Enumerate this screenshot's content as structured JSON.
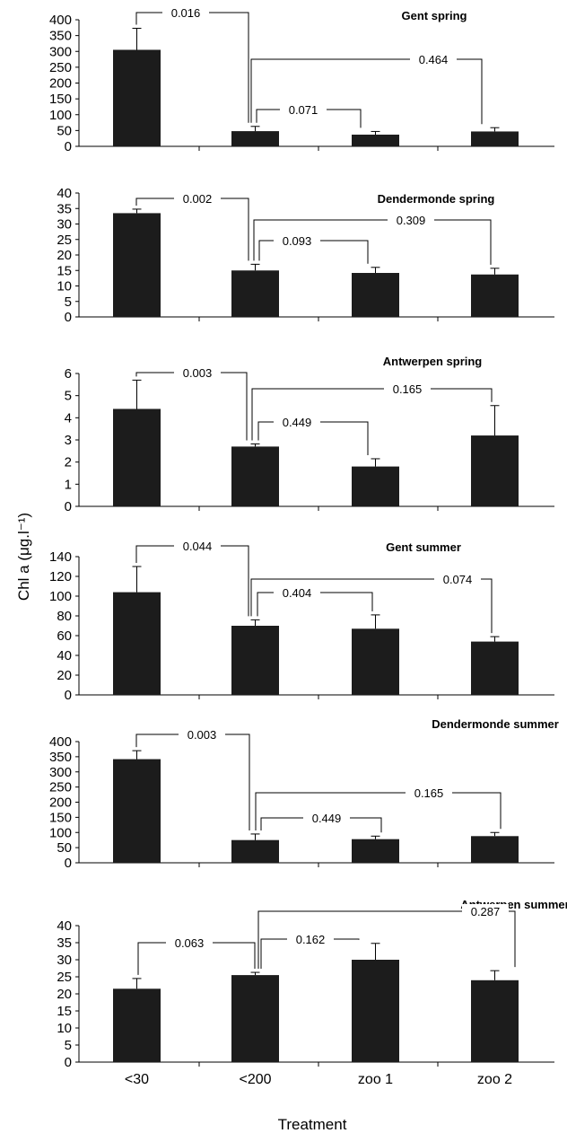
{
  "chart_data": {
    "type": "bar",
    "categories": [
      "<30",
      "<200",
      "zoo 1",
      "zoo 2"
    ],
    "xlabel": "Treatment",
    "ylabel": "Chl a (μg.l⁻¹)",
    "panels": [
      {
        "title": "Gent spring",
        "ylim": [
          0,
          400
        ],
        "ticks": [
          0,
          50,
          100,
          150,
          200,
          250,
          300,
          350,
          400
        ],
        "values": [
          305,
          48,
          37,
          47
        ],
        "errors": [
          68,
          15,
          10,
          12
        ],
        "comparisons": [
          {
            "label": "0.016",
            "target": 0
          },
          {
            "label": "0.464",
            "target": 3
          },
          {
            "label": "0.071",
            "target": 2
          }
        ]
      },
      {
        "title": "Dendermonde spring",
        "ylim": [
          0,
          40
        ],
        "ticks": [
          0,
          5,
          10,
          15,
          20,
          25,
          30,
          35,
          40
        ],
        "values": [
          33.5,
          15,
          14.2,
          13.7
        ],
        "errors": [
          1.3,
          2,
          1.8,
          2
        ],
        "comparisons": [
          {
            "label": "0.002",
            "target": 0
          },
          {
            "label": "0.309",
            "target": 3
          },
          {
            "label": "0.093",
            "target": 2
          }
        ]
      },
      {
        "title": "Antwerpen spring",
        "ylim": [
          0,
          6
        ],
        "ticks": [
          0,
          1,
          2,
          3,
          4,
          5,
          6
        ],
        "values": [
          4.4,
          2.7,
          1.8,
          3.2
        ],
        "errors": [
          1.3,
          0.12,
          0.35,
          1.35
        ],
        "comparisons": [
          {
            "label": "0.003",
            "target": 0
          },
          {
            "label": "0.165",
            "target": 3
          },
          {
            "label": "0.449",
            "target": 2
          }
        ]
      },
      {
        "title": "Gent summer",
        "ylim": [
          0,
          140
        ],
        "ticks": [
          0,
          20,
          40,
          60,
          80,
          100,
          120,
          140
        ],
        "values": [
          104,
          70,
          67,
          54
        ],
        "errors": [
          26,
          6,
          14,
          5
        ],
        "comparisons": [
          {
            "label": "0.044",
            "target": 0
          },
          {
            "label": "0.074",
            "target": 3
          },
          {
            "label": "0.404",
            "target": 2
          }
        ]
      },
      {
        "title": "Dendermonde summer",
        "ylim": [
          0,
          400
        ],
        "ticks": [
          0,
          50,
          100,
          150,
          200,
          250,
          300,
          350,
          400
        ],
        "values": [
          342,
          75,
          78,
          88
        ],
        "errors": [
          28,
          20,
          10,
          12
        ],
        "comparisons": [
          {
            "label": "0.003",
            "target": 0
          },
          {
            "label": "0.165",
            "target": 3
          },
          {
            "label": "0.449",
            "target": 2
          }
        ]
      },
      {
        "title": "Antwerpen summer",
        "ylim": [
          0,
          40
        ],
        "ticks": [
          0,
          5,
          10,
          15,
          20,
          25,
          30,
          35,
          40
        ],
        "values": [
          21.5,
          25.5,
          30,
          24
        ],
        "errors": [
          3,
          0.8,
          4.8,
          2.8
        ],
        "comparisons": [
          {
            "label": "0.063",
            "target": 0
          },
          {
            "label": "0.287",
            "target": 3
          },
          {
            "label": "0.162",
            "target": 2
          }
        ]
      }
    ]
  }
}
